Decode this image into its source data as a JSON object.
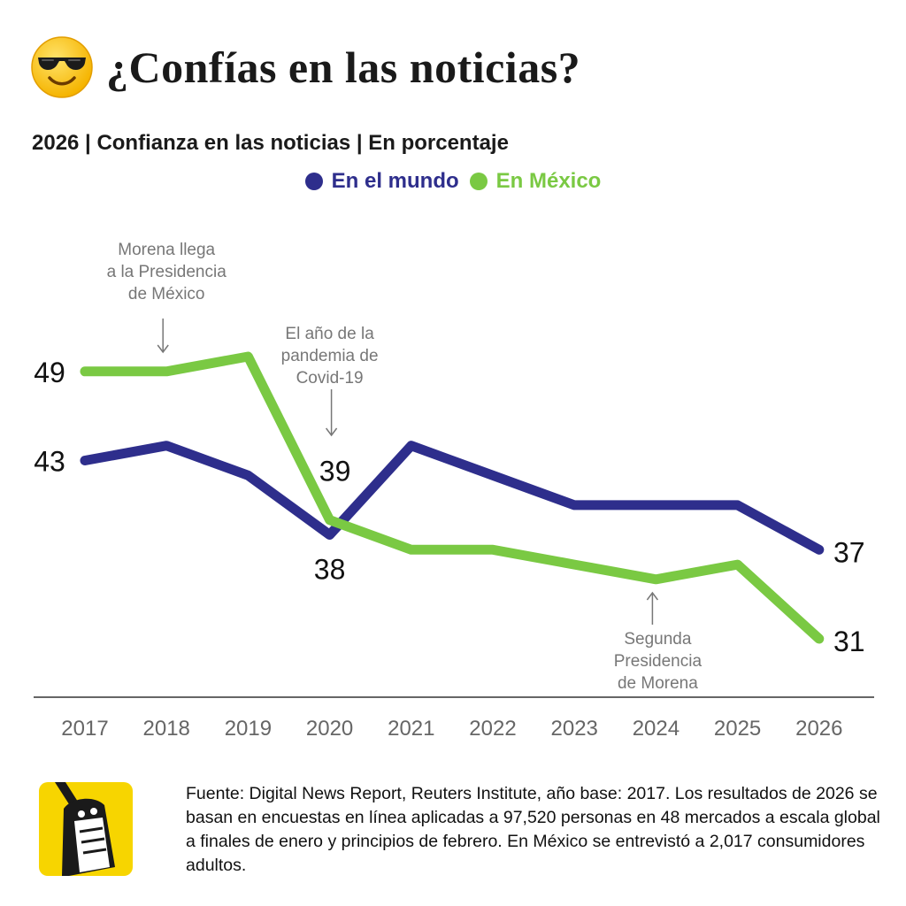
{
  "header": {
    "title": "¿Confías en las noticias?",
    "emoji_icon": "sunglasses-face-icon"
  },
  "colors": {
    "mundo": "#2e2e8c",
    "mexico": "#7ac943",
    "annotation": "#777777",
    "axis": "#333333"
  },
  "chart_data": {
    "type": "line",
    "title": "",
    "subtitle": "2026 | Confianza en las noticias | En porcentaje",
    "xlabel": "",
    "ylabel": "",
    "x": [
      "2017",
      "2018",
      "2019",
      "2020",
      "2021",
      "2022",
      "2023",
      "2024",
      "2025",
      "2026"
    ],
    "series": [
      {
        "name": "En el mundo",
        "color": "#2e2e8c",
        "values": [
          43,
          44,
          42,
          38,
          44,
          42,
          40,
          40,
          40,
          37
        ]
      },
      {
        "name": "En México",
        "color": "#7ac943",
        "values": [
          49,
          49,
          50,
          39,
          37,
          37,
          36,
          35,
          36,
          31
        ]
      }
    ],
    "data_labels": [
      {
        "series": 1,
        "index": 0,
        "text": "49"
      },
      {
        "series": 0,
        "index": 0,
        "text": "43"
      },
      {
        "series": 1,
        "index": 3,
        "text": "39"
      },
      {
        "series": 0,
        "index": 3,
        "text": "38"
      },
      {
        "series": 0,
        "index": 9,
        "text": "37"
      },
      {
        "series": 1,
        "index": 9,
        "text": "31"
      }
    ],
    "annotations": [
      {
        "index": 1,
        "lines": [
          "Morena llega",
          "a la Presidencia",
          "de México"
        ],
        "arrow": "down"
      },
      {
        "index": 3,
        "lines": [
          "El año de la",
          "pandemia de",
          "Covid-19"
        ],
        "arrow": "down"
      },
      {
        "index": 7,
        "lines": [
          "Segunda",
          "Presidencia",
          "de Morena"
        ],
        "arrow": "up"
      }
    ],
    "ylim": [
      29,
      52
    ],
    "grid": false,
    "legend_position": "top-center"
  },
  "footer": {
    "logo_icon": "newspaper-mascot-logo",
    "source": "Fuente: Digital News Report, Reuters Institute, año base: 2017. Los resultados de 2026 se basan en encuestas en línea aplicadas a 97,520 personas en 48 mercados a escala global a finales de enero y principios de febrero. En México se entrevistó a 2,017 consumidores adultos."
  }
}
